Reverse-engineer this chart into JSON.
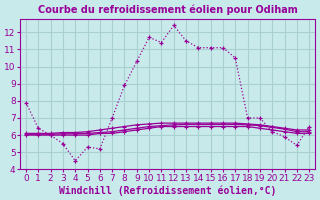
{
  "title": "Courbe du refroidissement éolien pour Odiham",
  "xlabel": "Windchill (Refroidissement éolien,°C)",
  "xlim": [
    -0.5,
    23.5
  ],
  "ylim": [
    4,
    12.8
  ],
  "yticks": [
    4,
    5,
    6,
    7,
    8,
    9,
    10,
    11,
    12
  ],
  "xticks": [
    0,
    1,
    2,
    3,
    4,
    5,
    6,
    7,
    8,
    9,
    10,
    11,
    12,
    13,
    14,
    15,
    16,
    17,
    18,
    19,
    20,
    21,
    22,
    23
  ],
  "bg_color": "#c8eaea",
  "grid_color": "#a8d0d0",
  "line_color": "#990099",
  "line1_x": [
    0,
    1,
    2,
    3,
    4,
    5,
    6,
    7,
    8,
    9,
    10,
    11,
    12,
    13,
    14,
    15,
    16,
    17,
    18,
    19,
    20,
    21,
    22,
    23
  ],
  "line1_y": [
    7.9,
    6.4,
    6.0,
    5.5,
    4.5,
    5.3,
    5.2,
    7.0,
    8.9,
    10.3,
    11.7,
    11.4,
    12.4,
    11.5,
    11.1,
    11.1,
    11.1,
    10.5,
    7.0,
    7.0,
    6.2,
    5.9,
    5.4,
    6.5
  ],
  "line2_x": [
    0,
    1,
    2,
    3,
    4,
    5,
    6,
    7,
    8,
    9,
    10,
    11,
    12,
    13,
    14,
    15,
    16,
    17,
    18,
    19,
    20,
    21,
    22,
    23
  ],
  "line2_y": [
    6.0,
    6.0,
    6.0,
    6.0,
    6.0,
    6.0,
    6.1,
    6.1,
    6.2,
    6.3,
    6.4,
    6.5,
    6.5,
    6.5,
    6.5,
    6.5,
    6.5,
    6.5,
    6.5,
    6.4,
    6.3,
    6.2,
    6.1,
    6.1
  ],
  "line3_x": [
    0,
    1,
    2,
    3,
    4,
    5,
    6,
    7,
    8,
    9,
    10,
    11,
    12,
    13,
    14,
    15,
    16,
    17,
    18,
    19,
    20,
    21,
    22,
    23
  ],
  "line3_y": [
    6.1,
    6.1,
    6.1,
    6.15,
    6.15,
    6.2,
    6.3,
    6.4,
    6.5,
    6.6,
    6.65,
    6.7,
    6.7,
    6.7,
    6.7,
    6.7,
    6.7,
    6.7,
    6.65,
    6.6,
    6.5,
    6.4,
    6.3,
    6.3
  ],
  "line4_x": [
    0,
    1,
    2,
    3,
    4,
    5,
    6,
    7,
    8,
    9,
    10,
    11,
    12,
    13,
    14,
    15,
    16,
    17,
    18,
    19,
    20,
    21,
    22,
    23
  ],
  "line4_y": [
    6.05,
    6.05,
    6.05,
    6.08,
    6.08,
    6.1,
    6.15,
    6.2,
    6.3,
    6.4,
    6.5,
    6.55,
    6.6,
    6.62,
    6.62,
    6.62,
    6.62,
    6.62,
    6.6,
    6.55,
    6.45,
    6.35,
    6.2,
    6.2
  ],
  "axis_color": "#990099",
  "tick_fontsize": 6.5,
  "xlabel_fontsize": 7
}
